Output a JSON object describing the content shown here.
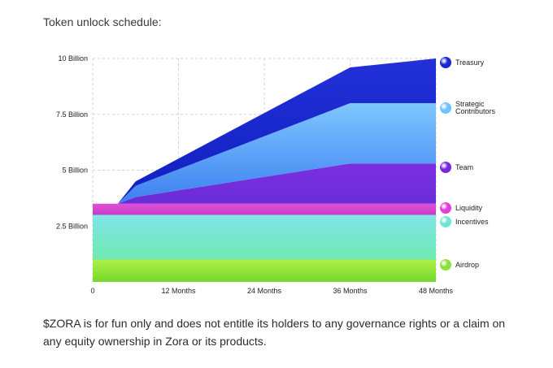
{
  "page": {
    "heading": "Token unlock schedule:",
    "disclaimer": "$ZORA is for fun only and does not entitle its holders to any governance rights or a claim on any equity ownership in Zora or its products."
  },
  "chart_data": {
    "type": "area",
    "title": "",
    "xlabel": "",
    "ylabel": "",
    "x_unit": "months",
    "xlim": [
      0,
      48
    ],
    "ylim": [
      0,
      10000000000
    ],
    "x_ticks": [
      {
        "value": 0,
        "label": "0"
      },
      {
        "value": 12,
        "label": "12 Months"
      },
      {
        "value": 24,
        "label": "24 Months"
      },
      {
        "value": 36,
        "label": "36 Months"
      },
      {
        "value": 48,
        "label": "48 Months"
      }
    ],
    "y_ticks": [
      {
        "value": 2500000000,
        "label": "2.5 Billion"
      },
      {
        "value": 5000000000,
        "label": "5 Billion"
      },
      {
        "value": 7500000000,
        "label": "7.5 Billion"
      },
      {
        "value": 10000000000,
        "label": "10 Billion"
      }
    ],
    "grid": true,
    "legend_position": "right",
    "series_stacked_bottom_to_top": [
      {
        "name": "Airdrop",
        "color_top": "#aef04a",
        "color_bottom": "#74d82a",
        "points": [
          [
            0,
            1000000000
          ],
          [
            48,
            1000000000
          ]
        ]
      },
      {
        "name": "Incentives",
        "color_top": "#7fe6e8",
        "color_bottom": "#6fe8b0",
        "points": [
          [
            0,
            2000000000
          ],
          [
            48,
            2000000000
          ]
        ]
      },
      {
        "name": "Liquidity",
        "color_top": "#e24fd8",
        "color_bottom": "#c53cc8",
        "points": [
          [
            0,
            500000000
          ],
          [
            48,
            500000000
          ]
        ]
      },
      {
        "name": "Team",
        "color_top": "#7b2ee0",
        "color_bottom": "#6a2dd8",
        "points": [
          [
            3.5,
            0
          ],
          [
            6,
            300000000
          ],
          [
            36,
            1800000000
          ],
          [
            48,
            1800000000
          ]
        ]
      },
      {
        "name": "Strategic Contributors",
        "color_top": "#7ec6ff",
        "color_bottom": "#3d7ff0",
        "points": [
          [
            3.5,
            0
          ],
          [
            6,
            500000000
          ],
          [
            36,
            2700000000
          ],
          [
            48,
            2700000000
          ]
        ]
      },
      {
        "name": "Treasury",
        "color_top": "#2230d8",
        "color_bottom": "#1020c0",
        "points": [
          [
            3.5,
            0
          ],
          [
            6,
            200000000
          ],
          [
            36,
            1600000000
          ],
          [
            48,
            2000000000
          ]
        ]
      }
    ],
    "legend": [
      {
        "name": "Treasury",
        "color": "#1a2ad0"
      },
      {
        "name": "Strategic Contributors",
        "color": "#6ec2ff"
      },
      {
        "name": "Team",
        "color": "#7a28e0"
      },
      {
        "name": "Liquidity",
        "color": "#e040d6"
      },
      {
        "name": "Incentives",
        "color": "#70e6d6"
      },
      {
        "name": "Airdrop",
        "color": "#8ee040"
      }
    ]
  }
}
